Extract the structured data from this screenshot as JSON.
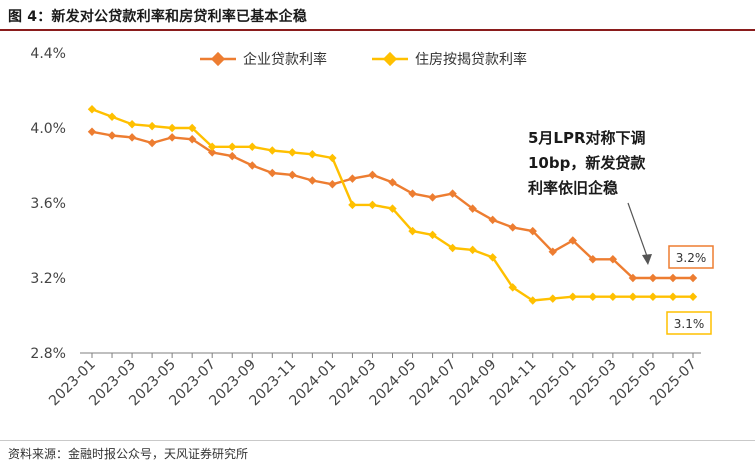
{
  "figure": {
    "title": "图 4：新发对公贷款利率和房贷利率已基本企稳",
    "source": "资料来源：金融时报公众号，天风证券研究所"
  },
  "colors": {
    "corporate": "#ED7D31",
    "mortgage": "#FFC000",
    "label_box_corporate": "#ED7D31",
    "label_box_mortgage": "#FFC000",
    "axis": "#7f7f7f",
    "title_rule": "#8a1c1c"
  },
  "chart_data": {
    "type": "line",
    "title": "",
    "xlabel": "",
    "ylabel": "",
    "ylim": [
      2.8,
      4.4
    ],
    "yticks": [
      2.8,
      3.2,
      3.6,
      4.0,
      4.4
    ],
    "ytick_labels": [
      "2.8%",
      "3.2%",
      "3.6%",
      "4.0%",
      "4.4%"
    ],
    "x": [
      "2023-01",
      "2023-02",
      "2023-03",
      "2023-04",
      "2023-05",
      "2023-06",
      "2023-07",
      "2023-08",
      "2023-09",
      "2023-10",
      "2023-11",
      "2023-12",
      "2024-01",
      "2024-02",
      "2024-03",
      "2024-04",
      "2024-05",
      "2024-06",
      "2024-07",
      "2024-08",
      "2024-09",
      "2024-10",
      "2024-11",
      "2024-12",
      "2025-01",
      "2025-02",
      "2025-03",
      "2025-04",
      "2025-05",
      "2025-06",
      "2025-07"
    ],
    "xtick_labels": [
      "2023-01",
      "2023-03",
      "2023-05",
      "2023-07",
      "2023-09",
      "2023-11",
      "2024-01",
      "2024-03",
      "2024-05",
      "2024-07",
      "2024-09",
      "2024-11",
      "2025-01",
      "2025-03",
      "2025-05",
      "2025-07"
    ],
    "legend_position": "top",
    "series": [
      {
        "name": "企业贷款利率",
        "color": "#ED7D31",
        "values": [
          3.98,
          3.96,
          3.95,
          3.92,
          3.95,
          3.94,
          3.87,
          3.85,
          3.8,
          3.76,
          3.75,
          3.72,
          3.7,
          3.73,
          3.75,
          3.71,
          3.65,
          3.63,
          3.65,
          3.57,
          3.51,
          3.47,
          3.45,
          3.34,
          3.4,
          3.3,
          3.3,
          3.2,
          3.2,
          3.2,
          3.2
        ]
      },
      {
        "name": "住房按揭贷款利率",
        "color": "#FFC000",
        "values": [
          4.1,
          4.06,
          4.02,
          4.01,
          4.0,
          4.0,
          3.9,
          3.9,
          3.9,
          3.88,
          3.87,
          3.86,
          3.84,
          3.59,
          3.59,
          3.57,
          3.45,
          3.43,
          3.36,
          3.35,
          3.31,
          3.15,
          3.08,
          3.09,
          3.1,
          3.1,
          3.1,
          3.1,
          3.1,
          3.1,
          3.1
        ]
      }
    ],
    "annotations": {
      "note_lines": [
        "5月LPR对称下调",
        "10bp，新发贷款",
        "利率依旧企稳"
      ],
      "end_label_corporate": "3.2%",
      "end_label_mortgage": "3.1%"
    }
  }
}
